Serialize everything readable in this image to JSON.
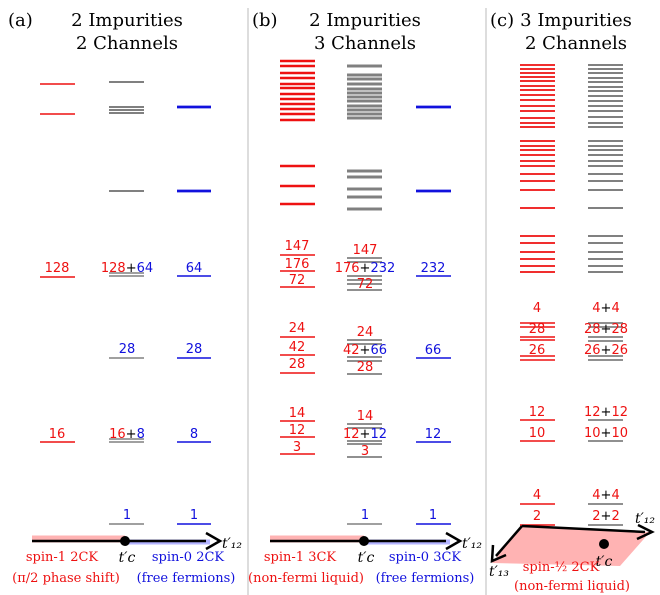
{
  "colors": {
    "red": "#ee1111",
    "gray": "#808080",
    "blue": "#1111dd",
    "black": "#000000",
    "pink": "#ffb3b3",
    "divider": "#bbbbbb"
  },
  "panels": [
    {
      "id": "a",
      "letter": "(a)",
      "title_line1": "2 Impurities",
      "title_line2": "2 Channels",
      "red_labels": [
        "128",
        "16"
      ],
      "mid_labels": [
        {
          "a": "128",
          "b": "64"
        },
        {
          "b": "28"
        },
        {
          "a": "16",
          "b": "8"
        },
        {
          "b": "1"
        }
      ],
      "blue_labels": [
        "64",
        "28",
        "8",
        "1"
      ],
      "axis_label": "t′₁₂",
      "critical_label": "t′c",
      "left_phase_line1": "spin-1 2CK",
      "left_phase_line2": "(π/2 phase shift)",
      "right_phase_line1": "spin-0 2CK",
      "right_phase_line2": "(free fermions)"
    },
    {
      "id": "b",
      "letter": "(b)",
      "title_line1": "2 Impurities",
      "title_line2": "3 Channels",
      "red_labels": [
        "147",
        "176",
        "72",
        "24",
        "42",
        "28",
        "14",
        "12",
        "3"
      ],
      "mid_labels": [
        {
          "a": "147"
        },
        {
          "a": "176",
          "b": "232"
        },
        {
          "a": "72"
        },
        {
          "a": "24"
        },
        {
          "a": "42",
          "b": "66"
        },
        {
          "a": "28"
        },
        {
          "a": "14"
        },
        {
          "a": "12",
          "b": "12"
        },
        {
          "a": "3"
        },
        {
          "b": "1"
        }
      ],
      "blue_labels": [
        "232",
        "66",
        "12",
        "1"
      ],
      "axis_label": "t′₁₂",
      "critical_label": "t′c",
      "left_phase_line1": "spin-1 3CK",
      "left_phase_line2": "(non-fermi liquid)",
      "right_phase_line1": "spin-0 3CK",
      "right_phase_line2": "(free fermions)"
    },
    {
      "id": "c",
      "letter": "(c)",
      "title_line1": "3 Impurities",
      "title_line2": "2 Channels",
      "red_labels": [
        "4",
        "28",
        "26",
        "12",
        "10",
        "4",
        "2"
      ],
      "mid_labels": [
        {
          "a": "4",
          "b": "4"
        },
        {
          "a": "28",
          "b": "28"
        },
        {
          "a": "26",
          "b": "26"
        },
        {
          "a": "12",
          "b": "12"
        },
        {
          "a": "10",
          "b": "10"
        },
        {
          "a": "4",
          "b": "4"
        },
        {
          "a": "2",
          "b": "2"
        }
      ],
      "axis_label_x": "t′₁₂",
      "axis_label_y": "t′₁₃",
      "critical_label": "t′c",
      "phase_line1": "spin-½ 2CK",
      "phase_line2": "(non-fermi liquid)"
    }
  ]
}
